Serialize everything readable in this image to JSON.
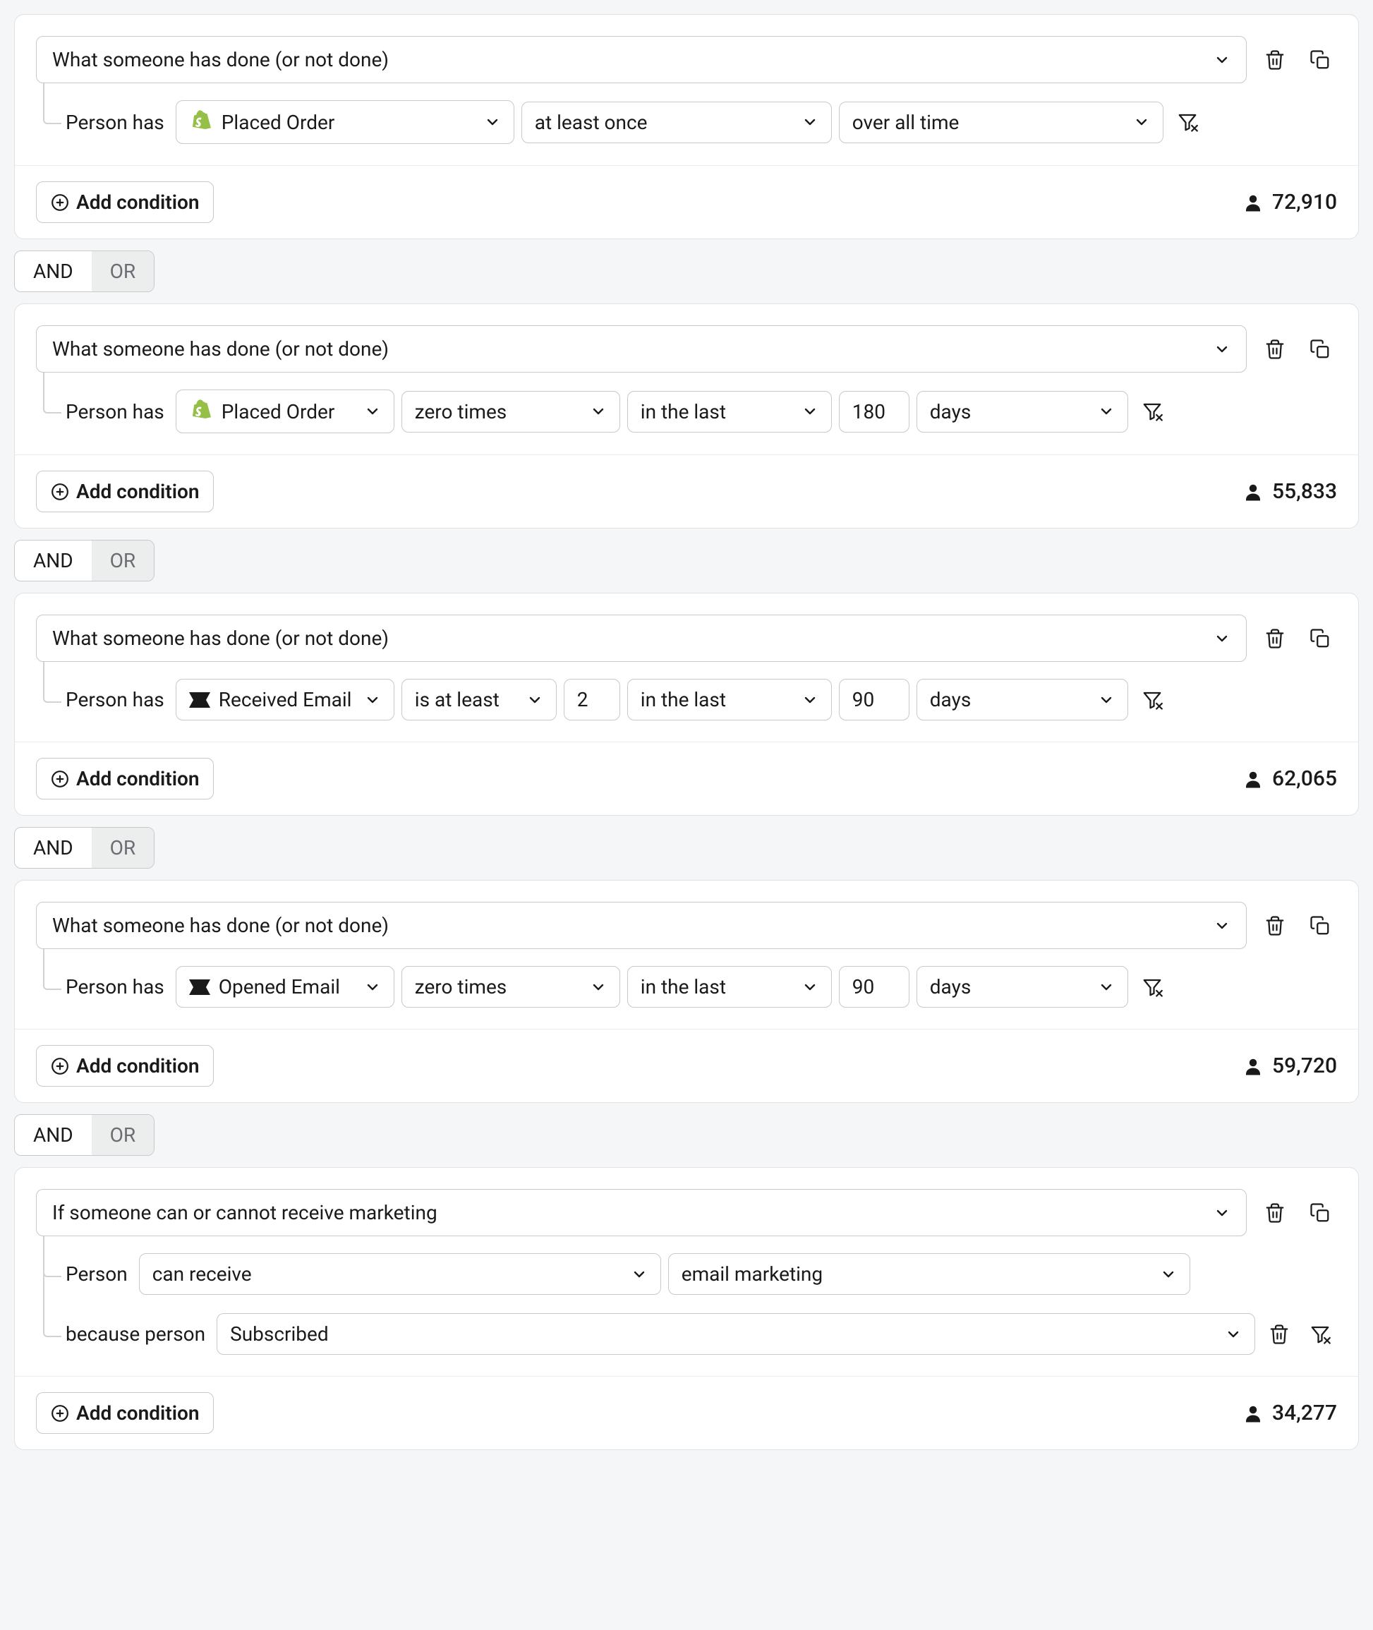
{
  "common": {
    "add_condition": "Add condition",
    "person_has": "Person has",
    "person": "Person",
    "because_person": "because person",
    "and": "AND",
    "or": "OR"
  },
  "segments": [
    {
      "header": "What someone has done (or not done)",
      "count": "72,910",
      "rows": [
        {
          "type": "event",
          "event_source": "shopify",
          "event": "Placed Order",
          "frequency": "at least once",
          "timeframe": "over all time",
          "has_filter": true
        }
      ]
    },
    {
      "header": "What someone has done (or not done)",
      "count": "55,833",
      "rows": [
        {
          "type": "event",
          "event_source": "shopify",
          "event": "Placed Order",
          "frequency": "zero times",
          "timeframe_prefix": "in the last",
          "timeframe_value": "180",
          "timeframe_unit": "days",
          "has_filter": true,
          "event_narrow": true
        }
      ]
    },
    {
      "header": "What someone has done (or not done)",
      "count": "62,065",
      "rows": [
        {
          "type": "event",
          "event_source": "klaviyo",
          "event": "Received Email",
          "frequency": "is at least",
          "frequency_value": "2",
          "timeframe_prefix": "in the last",
          "timeframe_value": "90",
          "timeframe_unit": "days",
          "has_filter": true,
          "event_narrow": true
        }
      ]
    },
    {
      "header": "What someone has done (or not done)",
      "count": "59,720",
      "rows": [
        {
          "type": "event",
          "event_source": "klaviyo",
          "event": "Opened Email",
          "frequency": "zero times",
          "timeframe_prefix": "in the last",
          "timeframe_value": "90",
          "timeframe_unit": "days",
          "has_filter": true,
          "event_narrow": true
        }
      ]
    },
    {
      "header": "If someone can or cannot receive marketing",
      "count": "34,277",
      "rows": [
        {
          "type": "marketing",
          "can": "can receive",
          "channel": "email marketing"
        },
        {
          "type": "because",
          "reason": "Subscribed",
          "has_delete": true,
          "has_filter": true
        }
      ]
    }
  ]
}
